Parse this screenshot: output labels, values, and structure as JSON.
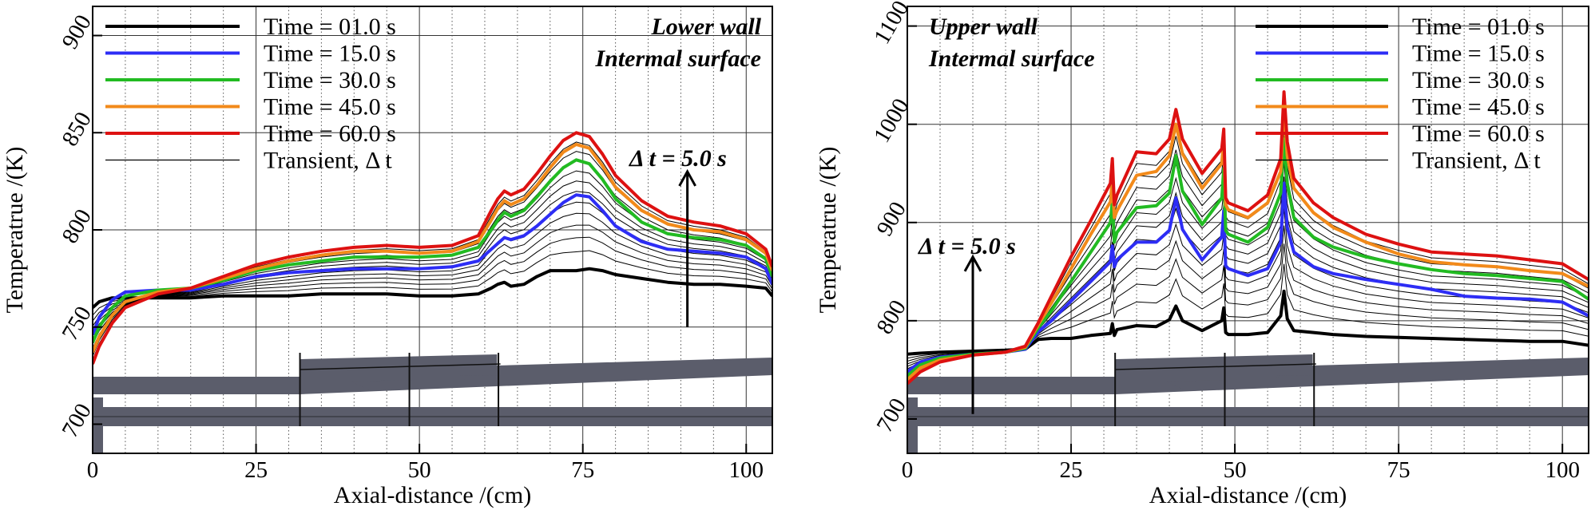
{
  "chart_data": [
    {
      "type": "line",
      "title": "",
      "xlabel": "Axial-distance /(cm)",
      "ylabel": "Temperatrue /(K)",
      "xlim": [
        0,
        104
      ],
      "ylim": [
        685,
        915
      ],
      "xticks": [
        0,
        25,
        50,
        75,
        100
      ],
      "yticks": [
        700,
        750,
        800,
        850,
        900
      ],
      "annotations": [
        "Lower wall",
        "Intermal surface"
      ],
      "arrow_label": "Δ t = 5.0 s",
      "arrow": {
        "x": 91,
        "y_from": 750,
        "y_to": 830
      },
      "legend": [
        "Time = 01.0 s",
        "Time = 15.0 s",
        "Time = 30.0 s",
        "Time = 45.0 s",
        "Time = 60.0 s",
        "Transient, Δ t"
      ],
      "series": [
        {
          "name": "Time = 01.0 s",
          "color": "#000000",
          "x": [
            0,
            1,
            3,
            5,
            10,
            15,
            20,
            25,
            30,
            35,
            40,
            45,
            50,
            55,
            59,
            61,
            62,
            63,
            64,
            66,
            68,
            70,
            72,
            74,
            76,
            78,
            80,
            84,
            88,
            92,
            96,
            100,
            103,
            104
          ],
          "y": [
            760,
            763,
            765,
            765,
            765,
            765,
            766,
            766,
            766,
            767,
            767,
            767,
            766,
            766,
            767,
            770,
            772,
            773,
            771,
            772,
            776,
            779,
            779,
            779,
            780,
            779,
            777,
            775,
            773,
            772,
            772,
            771,
            770,
            766
          ]
        },
        {
          "name": "Time = 15.0 s",
          "color": "#2d2df5",
          "x": [
            0,
            1,
            3,
            5,
            10,
            15,
            20,
            25,
            30,
            35,
            40,
            45,
            50,
            55,
            59,
            61,
            62,
            63,
            64,
            66,
            68,
            70,
            72,
            74,
            76,
            78,
            80,
            84,
            88,
            92,
            96,
            100,
            103,
            104
          ],
          "y": [
            746,
            755,
            764,
            768,
            769,
            769,
            772,
            776,
            778,
            779,
            780,
            780,
            780,
            781,
            784,
            790,
            793,
            796,
            795,
            797,
            802,
            808,
            814,
            818,
            817,
            810,
            802,
            794,
            790,
            789,
            788,
            786,
            780,
            772
          ]
        },
        {
          "name": "Time = 30.0 s",
          "color": "#22bb22",
          "x": [
            0,
            1,
            3,
            5,
            10,
            15,
            20,
            25,
            30,
            35,
            40,
            45,
            50,
            55,
            59,
            61,
            62,
            63,
            64,
            66,
            68,
            70,
            72,
            74,
            76,
            78,
            80,
            84,
            88,
            92,
            96,
            100,
            103,
            104
          ],
          "y": [
            742,
            750,
            760,
            766,
            769,
            770,
            774,
            779,
            782,
            784,
            786,
            786,
            786,
            787,
            791,
            800,
            805,
            809,
            807,
            810,
            817,
            825,
            832,
            836,
            834,
            826,
            816,
            804,
            798,
            796,
            795,
            792,
            785,
            776
          ]
        },
        {
          "name": "Time = 45.0 s",
          "color": "#f28a1a",
          "x": [
            0,
            1,
            3,
            5,
            10,
            15,
            20,
            25,
            30,
            35,
            40,
            45,
            50,
            55,
            59,
            61,
            62,
            63,
            64,
            66,
            68,
            70,
            72,
            74,
            76,
            78,
            80,
            84,
            88,
            92,
            96,
            100,
            103,
            104
          ],
          "y": [
            737,
            745,
            756,
            763,
            768,
            770,
            775,
            780,
            784,
            787,
            789,
            789,
            788,
            789,
            794,
            805,
            811,
            815,
            813,
            816,
            823,
            832,
            840,
            844,
            842,
            833,
            822,
            810,
            803,
            800,
            799,
            795,
            788,
            779
          ]
        },
        {
          "name": "Time = 60.0 s",
          "color": "#dd1111",
          "x": [
            0,
            1,
            3,
            5,
            10,
            15,
            20,
            25,
            30,
            35,
            40,
            45,
            50,
            55,
            59,
            61,
            62,
            63,
            64,
            66,
            68,
            70,
            72,
            74,
            76,
            78,
            80,
            84,
            88,
            92,
            96,
            100,
            103,
            104
          ],
          "y": [
            731,
            740,
            752,
            760,
            767,
            770,
            776,
            782,
            786,
            789,
            791,
            792,
            791,
            792,
            797,
            810,
            816,
            820,
            818,
            821,
            829,
            838,
            846,
            850,
            848,
            839,
            828,
            815,
            807,
            804,
            802,
            798,
            790,
            781
          ]
        }
      ],
      "transient_count": 11
    },
    {
      "type": "line",
      "title": "",
      "xlabel": "Axial-distance /(cm)",
      "ylabel": "Temperatrue /(K)",
      "xlim": [
        0,
        104
      ],
      "ylim": [
        665,
        1120
      ],
      "xticks": [
        0,
        25,
        50,
        75,
        100
      ],
      "yticks": [
        700,
        800,
        900,
        1000,
        1100
      ],
      "annotations": [
        "Upper wall",
        "Intermal surface"
      ],
      "arrow_label": "Δ t = 5.0 s",
      "arrow": {
        "x": 10,
        "y_from": 705,
        "y_to": 865
      },
      "legend": [
        "Time = 01.0 s",
        "Time = 15.0 s",
        "Time = 30.0 s",
        "Time = 45.0 s",
        "Time = 60.0 s",
        "Transient, Δ t"
      ],
      "series": [
        {
          "name": "Time = 01.0 s",
          "color": "#000000",
          "x": [
            0,
            2,
            5,
            10,
            15,
            18,
            20,
            22,
            25,
            28,
            31,
            31.3,
            31.6,
            32,
            35,
            38,
            40,
            41,
            42,
            45,
            48,
            48.3,
            48.6,
            49,
            52,
            55,
            57,
            57.5,
            58,
            59,
            62,
            65,
            70,
            75,
            80,
            85,
            90,
            95,
            100,
            104
          ],
          "y": [
            766,
            767,
            768,
            769,
            770,
            771,
            781,
            782,
            782,
            785,
            787,
            797,
            785,
            791,
            795,
            794,
            801,
            815,
            800,
            790,
            800,
            813,
            788,
            786,
            786,
            788,
            805,
            830,
            802,
            790,
            788,
            786,
            784,
            783,
            782,
            781,
            780,
            779,
            779,
            775
          ]
        },
        {
          "name": "Time = 15.0 s",
          "color": "#2d2df5",
          "x": [
            0,
            2,
            5,
            10,
            15,
            18,
            20,
            22,
            25,
            28,
            31,
            31.3,
            31.6,
            32,
            35,
            38,
            40,
            41,
            42,
            45,
            48,
            48.3,
            48.6,
            49,
            52,
            55,
            57,
            57.5,
            58,
            59,
            62,
            65,
            70,
            75,
            80,
            85,
            90,
            95,
            100,
            104
          ],
          "y": [
            748,
            758,
            763,
            766,
            768,
            771,
            789,
            800,
            820,
            840,
            860,
            876,
            855,
            862,
            880,
            880,
            892,
            925,
            893,
            862,
            885,
            912,
            856,
            853,
            846,
            853,
            880,
            940,
            895,
            870,
            855,
            848,
            842,
            837,
            832,
            825,
            823,
            822,
            819,
            805
          ]
        },
        {
          "name": "Time = 30.0 s",
          "color": "#22bb22",
          "x": [
            0,
            2,
            5,
            10,
            15,
            18,
            20,
            22,
            25,
            28,
            31,
            31.3,
            31.6,
            32,
            35,
            38,
            40,
            41,
            42,
            45,
            48,
            48.3,
            48.6,
            49,
            52,
            55,
            57,
            57.5,
            58,
            59,
            62,
            65,
            70,
            75,
            80,
            85,
            90,
            95,
            100,
            104
          ],
          "y": [
            744,
            755,
            762,
            766,
            768,
            772,
            793,
            810,
            840,
            870,
            900,
            922,
            880,
            890,
            915,
            917,
            930,
            968,
            932,
            898,
            925,
            955,
            892,
            888,
            880,
            895,
            930,
            985,
            940,
            905,
            885,
            875,
            865,
            858,
            852,
            848,
            846,
            843,
            840,
            822
          ]
        },
        {
          "name": "Time = 45.0 s",
          "color": "#f28a1a",
          "x": [
            0,
            2,
            5,
            10,
            15,
            18,
            20,
            22,
            25,
            28,
            31,
            31.3,
            31.6,
            32,
            35,
            38,
            40,
            41,
            42,
            45,
            48,
            48.3,
            48.6,
            49,
            52,
            55,
            57,
            57.5,
            58,
            59,
            62,
            65,
            70,
            75,
            80,
            85,
            90,
            95,
            100,
            104
          ],
          "y": [
            740,
            752,
            760,
            765,
            768,
            773,
            796,
            818,
            853,
            888,
            921,
            945,
            905,
            912,
            948,
            952,
            968,
            1000,
            970,
            935,
            960,
            985,
            918,
            913,
            905,
            920,
            952,
            1020,
            968,
            935,
            910,
            895,
            880,
            868,
            860,
            857,
            855,
            851,
            848,
            835
          ]
        },
        {
          "name": "Time = 60.0 s",
          "color": "#dd1111",
          "x": [
            0,
            2,
            5,
            10,
            15,
            18,
            20,
            22,
            25,
            28,
            31,
            31.3,
            31.6,
            32,
            35,
            38,
            40,
            41,
            42,
            45,
            48,
            48.3,
            48.6,
            49,
            52,
            55,
            57,
            57.5,
            58,
            59,
            62,
            65,
            70,
            75,
            80,
            85,
            90,
            95,
            100,
            104
          ],
          "y": [
            736,
            748,
            758,
            765,
            768,
            774,
            798,
            825,
            865,
            902,
            940,
            965,
            918,
            928,
            972,
            970,
            985,
            1015,
            985,
            950,
            975,
            995,
            925,
            920,
            912,
            928,
            965,
            1033,
            982,
            945,
            920,
            905,
            888,
            878,
            870,
            868,
            866,
            862,
            858,
            842
          ]
        }
      ],
      "transient_count": 11
    }
  ]
}
